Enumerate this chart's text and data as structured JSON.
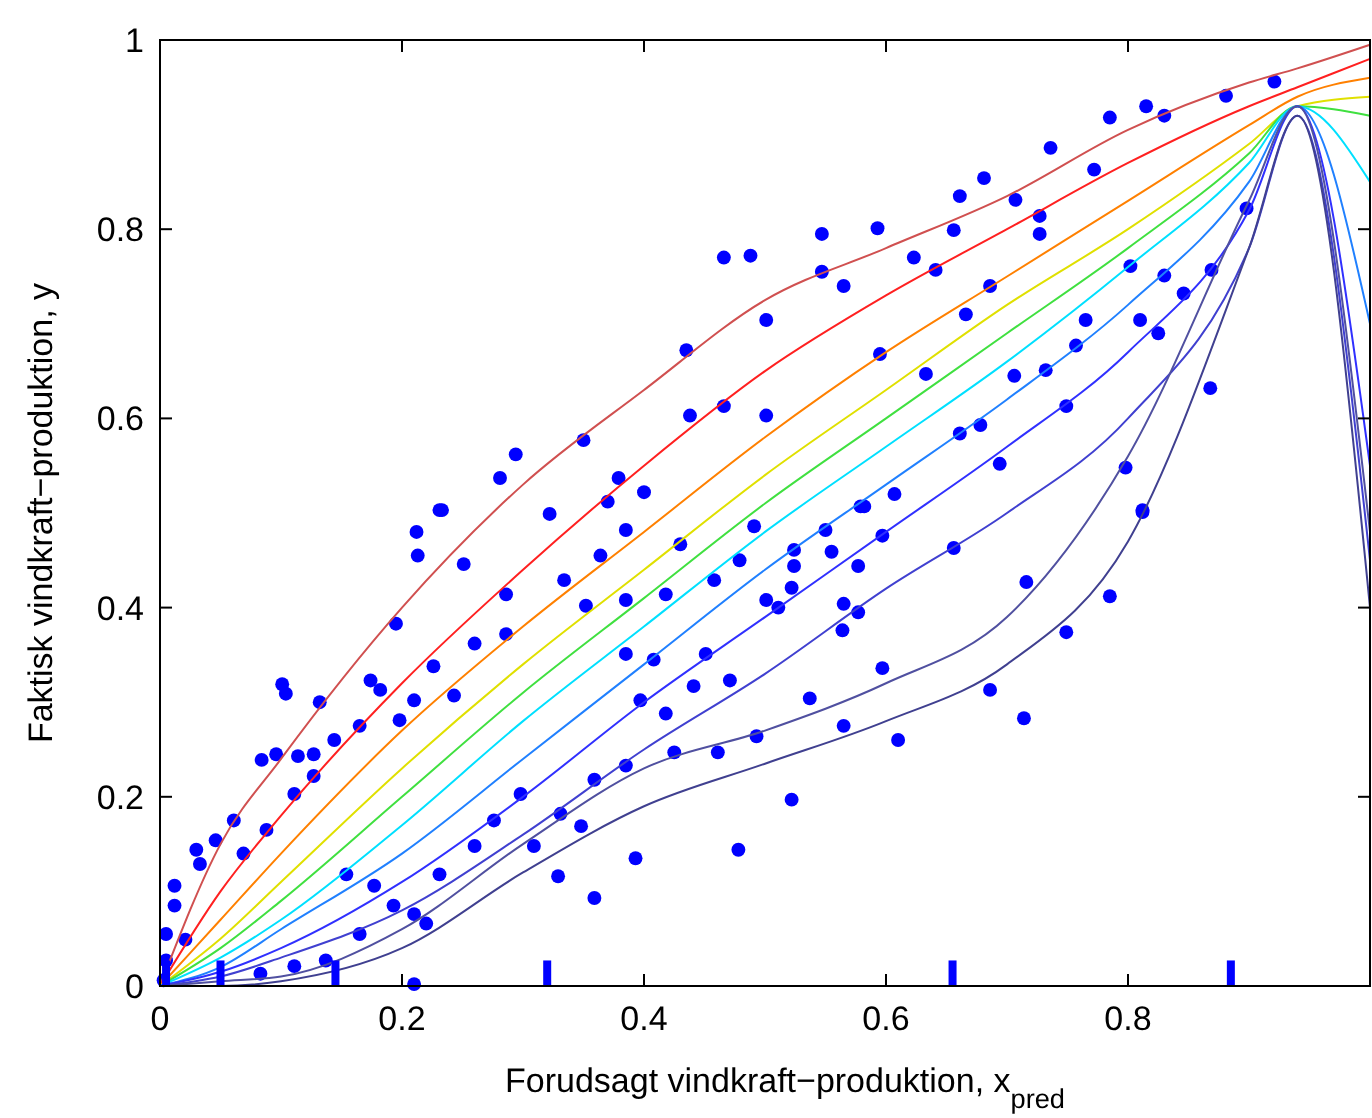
{
  "chart_data": {
    "type": "scatter",
    "xlabel": "Forudsagt vindkraft−produktion, x$_{pred}$",
    "ylabel": "Faktisk vindkraft−produktion, y",
    "xlim": [
      0,
      1
    ],
    "ylim": [
      0,
      1
    ],
    "xticks": [
      0,
      0.2,
      0.4,
      0.6,
      0.8,
      {
        "value": 1,
        "label": null
      }
    ],
    "yticks": [
      0,
      0.2,
      0.4,
      0.6,
      0.8,
      1
    ],
    "grid": false,
    "legend": false,
    "line_style": "solid",
    "series": [
      {
        "marker": "circle",
        "color": "#0000ff",
        "x": [
          0.466,
          0.488,
          0.435,
          0.438,
          0.466,
          0.35,
          0.294,
          0.281,
          0.379,
          0.37,
          0.231,
          0.322,
          0.4,
          0.815,
          0.785,
          0.736,
          0.681,
          0.661,
          0.547,
          0.593,
          0.547,
          0.565,
          0.501,
          0.656,
          0.707,
          0.772,
          0.881,
          0.921,
          0.623,
          0.641,
          0.727,
          0.83,
          0.898,
          0.869,
          0.846,
          0.83,
          0.81,
          0.825,
          0.868,
          0.749,
          0.798,
          0.812,
          0.694,
          0.678,
          0.661,
          0.732,
          0.706,
          0.757,
          0.633,
          0.607,
          0.579,
          0.501,
          0.595,
          0.666,
          0.686,
          0.727,
          0.765,
          0.802,
          0.233,
          0.212,
          0.213,
          0.251,
          0.195,
          0.101,
          0.104,
          0.132,
          0.084,
          0.096,
          0.127,
          0.114,
          0.174,
          0.182,
          0.226,
          0.286,
          0.334,
          0.286,
          0.26,
          0.385,
          0.364,
          0.43,
          0.491,
          0.471,
          0.493,
          0.461,
          0.425,
          0.393,
          0.478,
          0.359,
          0.329,
          0.348,
          0.21,
          0.22,
          0.03,
          0.012,
          0.033,
          0.046,
          0.061,
          0.069,
          0.088,
          0.111,
          0.127,
          0.144,
          0.165,
          0.198,
          0.21,
          0.243,
          0.154,
          0.177,
          0.193,
          0.21,
          0.165,
          0.137,
          0.111,
          0.083,
          0.231,
          0.26,
          0.276,
          0.298,
          0.309,
          0.331,
          0.359,
          0.385,
          0.397,
          0.418,
          0.441,
          0.451,
          0.408,
          0.385,
          0.352,
          0.385,
          0.418,
          0.458,
          0.479,
          0.012,
          0.005,
          0.005,
          0.021,
          0.003,
          0.812,
          0.785,
          0.749,
          0.716,
          0.714,
          0.686,
          0.656,
          0.597,
          0.597,
          0.61,
          0.565,
          0.537,
          0.522,
          0.564,
          0.577,
          0.565,
          0.577,
          0.555,
          0.522,
          0.511,
          0.501,
          0.524,
          0.524,
          0.55,
          0.582
        ],
        "values": [
          0.77,
          0.772,
          0.672,
          0.603,
          0.613,
          0.577,
          0.562,
          0.537,
          0.537,
          0.512,
          0.503,
          0.499,
          0.522,
          0.93,
          0.918,
          0.886,
          0.854,
          0.835,
          0.795,
          0.801,
          0.755,
          0.74,
          0.704,
          0.799,
          0.831,
          0.863,
          0.941,
          0.956,
          0.77,
          0.757,
          0.814,
          0.92,
          0.822,
          0.757,
          0.732,
          0.751,
          0.704,
          0.69,
          0.632,
          0.613,
          0.548,
          0.503,
          0.552,
          0.593,
          0.584,
          0.651,
          0.645,
          0.677,
          0.647,
          0.52,
          0.507,
          0.603,
          0.668,
          0.71,
          0.74,
          0.795,
          0.704,
          0.761,
          0.503,
          0.48,
          0.455,
          0.446,
          0.383,
          0.319,
          0.309,
          0.3,
          0.239,
          0.245,
          0.245,
          0.243,
          0.323,
          0.313,
          0.338,
          0.414,
          0.429,
          0.372,
          0.362,
          0.482,
          0.455,
          0.467,
          0.486,
          0.323,
          0.264,
          0.247,
          0.247,
          0.135,
          0.144,
          0.093,
          0.116,
          0.169,
          0.002,
          0.066,
          0.144,
          0.106,
          0.129,
          0.154,
          0.175,
          0.14,
          0.165,
          0.203,
          0.222,
          0.26,
          0.275,
          0.281,
          0.302,
          0.307,
          0.118,
          0.106,
          0.085,
          0.076,
          0.055,
          0.027,
          0.021,
          0.013,
          0.118,
          0.148,
          0.175,
          0.203,
          0.148,
          0.182,
          0.218,
          0.233,
          0.302,
          0.288,
          0.317,
          0.351,
          0.345,
          0.351,
          0.402,
          0.408,
          0.414,
          0.429,
          0.45,
          0.085,
          0.055,
          0.027,
          0.049,
          0.006,
          0.501,
          0.412,
          0.374,
          0.427,
          0.283,
          0.313,
          0.463,
          0.476,
          0.336,
          0.26,
          0.275,
          0.304,
          0.197,
          0.376,
          0.395,
          0.404,
          0.444,
          0.459,
          0.421,
          0.4,
          0.408,
          0.444,
          0.461,
          0.482,
          0.507
        ]
      },
      {
        "type": "line",
        "color": "#d05050",
        "x": [
          0,
          0.05,
          0.1,
          0.2,
          0.3,
          0.4,
          0.5,
          0.6,
          0.7,
          0.8,
          0.9,
          0.94,
          1
        ],
        "values": [
          0,
          0.15,
          0.24,
          0.4,
          0.53,
          0.63,
          0.725,
          0.78,
          0.835,
          0.905,
          0.955,
          0.97,
          0.995
        ]
      },
      {
        "type": "line",
        "color": "#ff2020",
        "x": [
          0,
          0.05,
          0.1,
          0.2,
          0.3,
          0.4,
          0.5,
          0.6,
          0.7,
          0.8,
          0.9,
          0.94,
          1
        ],
        "values": [
          0,
          0.1,
          0.18,
          0.32,
          0.44,
          0.55,
          0.65,
          0.73,
          0.8,
          0.87,
          0.93,
          0.95,
          0.98
        ]
      },
      {
        "type": "line",
        "color": "#ff8000",
        "x": [
          0,
          0.05,
          0.1,
          0.2,
          0.3,
          0.4,
          0.5,
          0.6,
          0.7,
          0.8,
          0.9,
          0.94,
          1
        ],
        "values": [
          0,
          0.07,
          0.14,
          0.27,
          0.38,
          0.48,
          0.58,
          0.67,
          0.75,
          0.83,
          0.91,
          0.94,
          0.96
        ]
      },
      {
        "type": "line",
        "color": "#e0e000",
        "x": [
          0,
          0.05,
          0.1,
          0.2,
          0.3,
          0.4,
          0.5,
          0.6,
          0.7,
          0.8,
          0.9,
          0.94,
          1
        ],
        "values": [
          0,
          0.05,
          0.11,
          0.23,
          0.34,
          0.44,
          0.54,
          0.63,
          0.72,
          0.8,
          0.89,
          0.93,
          0.94
        ]
      },
      {
        "type": "line",
        "color": "#40e040",
        "x": [
          0,
          0.05,
          0.1,
          0.2,
          0.3,
          0.4,
          0.5,
          0.6,
          0.7,
          0.8,
          0.9,
          0.94,
          1
        ],
        "values": [
          0,
          0.04,
          0.09,
          0.2,
          0.31,
          0.41,
          0.51,
          0.6,
          0.69,
          0.78,
          0.88,
          0.93,
          0.92
        ]
      },
      {
        "type": "line",
        "color": "#00e0ff",
        "x": [
          0,
          0.05,
          0.1,
          0.2,
          0.3,
          0.4,
          0.5,
          0.6,
          0.7,
          0.8,
          0.9,
          0.94,
          1
        ],
        "values": [
          0,
          0.03,
          0.07,
          0.17,
          0.28,
          0.38,
          0.48,
          0.57,
          0.66,
          0.76,
          0.87,
          0.93,
          0.85
        ]
      },
      {
        "type": "line",
        "color": "#2080ff",
        "x": [
          0,
          0.05,
          0.1,
          0.2,
          0.3,
          0.4,
          0.5,
          0.6,
          0.7,
          0.8,
          0.9,
          0.94,
          1
        ],
        "values": [
          0,
          0.02,
          0.06,
          0.14,
          0.24,
          0.34,
          0.44,
          0.53,
          0.62,
          0.72,
          0.85,
          0.93,
          0.7
        ]
      },
      {
        "type": "line",
        "color": "#3030ff",
        "x": [
          0,
          0.05,
          0.1,
          0.2,
          0.3,
          0.4,
          0.5,
          0.6,
          0.7,
          0.8,
          0.9,
          0.94,
          1
        ],
        "values": [
          0,
          0.015,
          0.04,
          0.11,
          0.2,
          0.3,
          0.39,
          0.48,
          0.57,
          0.67,
          0.82,
          0.93,
          0.55
        ]
      },
      {
        "type": "line",
        "color": "#4040d0",
        "x": [
          0,
          0.05,
          0.1,
          0.2,
          0.3,
          0.4,
          0.5,
          0.6,
          0.7,
          0.8,
          0.9,
          0.94,
          1
        ],
        "values": [
          0,
          0.01,
          0.03,
          0.08,
          0.16,
          0.25,
          0.33,
          0.42,
          0.5,
          0.6,
          0.78,
          0.92,
          0.45
        ]
      },
      {
        "type": "line",
        "color": "#5050a0",
        "x": [
          0,
          0.05,
          0.1,
          0.2,
          0.3,
          0.4,
          0.5,
          0.6,
          0.7,
          0.8,
          0.9,
          0.94,
          1
        ],
        "values": [
          0,
          0.005,
          0.01,
          0.06,
          0.15,
          0.23,
          0.27,
          0.32,
          0.39,
          0.56,
          0.83,
          0.93,
          0.48
        ]
      },
      {
        "type": "line",
        "color": "#404090",
        "x": [
          0,
          0.05,
          0.1,
          0.2,
          0.3,
          0.4,
          0.5,
          0.6,
          0.7,
          0.8,
          0.9,
          0.94,
          1
        ],
        "values": [
          0,
          0,
          0.005,
          0.04,
          0.12,
          0.19,
          0.235,
          0.28,
          0.34,
          0.47,
          0.78,
          0.92,
          0.4
        ]
      },
      {
        "type": "bar",
        "color": "#0000ff",
        "x": [
          0.005,
          0.05,
          0.145,
          0.32,
          0.655,
          0.885
        ],
        "values": [
          0.027,
          0.027,
          0.027,
          0.027,
          0.027,
          0.027
        ]
      }
    ]
  }
}
